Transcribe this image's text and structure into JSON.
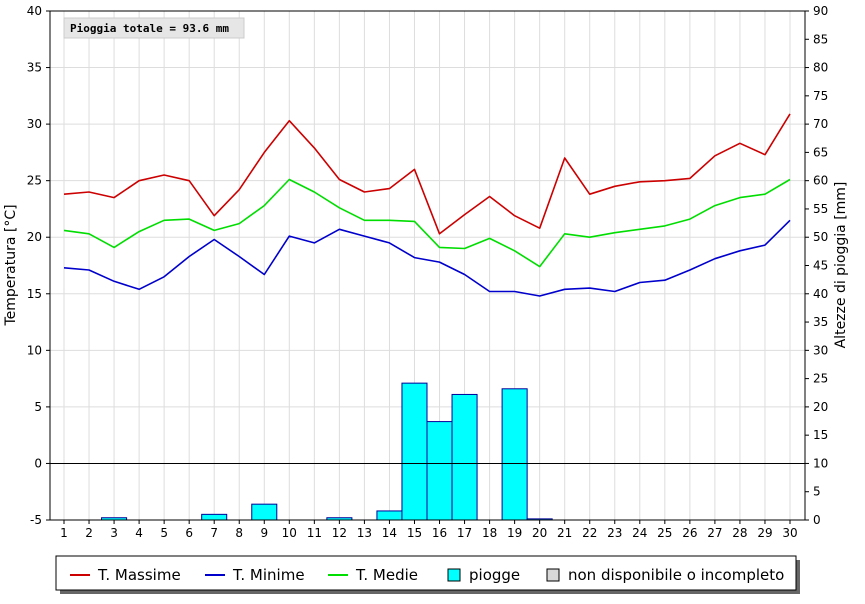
{
  "chart_data": {
    "type": "line",
    "annotation": "Pioggia totale = 93.6 mm",
    "ylabel_left": "Temperatura [°C]",
    "ylabel_right": "Altezze di pioggia [mm]",
    "xlabel": "",
    "x": [
      1,
      2,
      3,
      4,
      5,
      6,
      7,
      8,
      9,
      10,
      11,
      12,
      13,
      14,
      15,
      16,
      17,
      18,
      19,
      20,
      21,
      22,
      23,
      24,
      25,
      26,
      27,
      28,
      29,
      30
    ],
    "ylim_left": [
      -5,
      40
    ],
    "ylim_right": [
      0,
      90
    ],
    "left_ticks": [
      -5,
      0,
      5,
      10,
      15,
      20,
      25,
      30,
      35,
      40
    ],
    "right_ticks": [
      0,
      5,
      10,
      15,
      20,
      25,
      30,
      35,
      40,
      45,
      50,
      55,
      60,
      65,
      70,
      75,
      80,
      85,
      90
    ],
    "grid": true,
    "zero_line": true,
    "legend_position": "bottom",
    "series": [
      {
        "name": "T. Massime",
        "color": "#cc0000",
        "axis": "left",
        "values": [
          23.8,
          24.0,
          23.5,
          25.0,
          25.5,
          25.0,
          21.9,
          24.2,
          27.5,
          30.3,
          27.9,
          25.1,
          24.0,
          24.3,
          26.0,
          20.3,
          22.0,
          23.6,
          21.9,
          20.8,
          27.0,
          23.8,
          24.5,
          24.9,
          25.0,
          25.2,
          27.2,
          28.3,
          27.3,
          30.9
        ]
      },
      {
        "name": "T. Minime",
        "color": "#0000cc",
        "axis": "left",
        "values": [
          17.3,
          17.1,
          16.1,
          15.4,
          16.5,
          18.3,
          19.8,
          18.3,
          16.7,
          20.1,
          19.5,
          20.7,
          20.1,
          19.5,
          18.2,
          17.8,
          16.7,
          15.2,
          15.2,
          14.8,
          15.4,
          15.5,
          15.2,
          16.0,
          16.2,
          17.1,
          18.1,
          18.8,
          19.3,
          21.5
        ]
      },
      {
        "name": "T. Medie",
        "color": "#00dd00",
        "axis": "left",
        "values": [
          20.6,
          20.3,
          19.1,
          20.5,
          21.5,
          21.6,
          20.6,
          21.2,
          22.8,
          25.1,
          24.0,
          22.6,
          21.5,
          21.5,
          21.4,
          19.1,
          19.0,
          19.9,
          18.8,
          17.4,
          20.3,
          20.0,
          20.4,
          20.7,
          21.0,
          21.6,
          22.8,
          23.5,
          23.8,
          25.1
        ]
      },
      {
        "name": "piogge",
        "type": "bar",
        "color": "#00ffff",
        "axis": "right",
        "values": [
          0,
          0,
          0.4,
          0,
          0,
          0,
          1.0,
          0,
          2.8,
          0,
          0,
          0.4,
          0,
          1.6,
          24.2,
          17.4,
          22.2,
          0,
          23.2,
          0.2,
          0,
          0,
          0,
          0,
          0,
          0,
          0,
          0,
          0,
          0
        ]
      }
    ],
    "legend": [
      {
        "label": "T. Massime",
        "kind": "line",
        "color": "#cc0000"
      },
      {
        "label": "T. Minime",
        "kind": "line",
        "color": "#0000cc"
      },
      {
        "label": "T. Medie",
        "kind": "line",
        "color": "#00dd00"
      },
      {
        "label": "piogge",
        "kind": "box",
        "color": "#00ffff"
      },
      {
        "label": "non disponibile o incompleto",
        "kind": "box",
        "color": "#d8d8d8"
      }
    ]
  }
}
